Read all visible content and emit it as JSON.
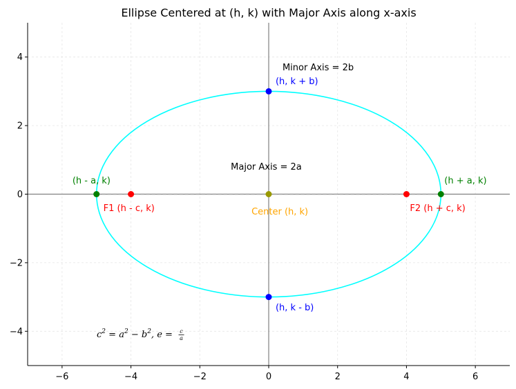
{
  "chart_data": {
    "type": "scatter",
    "title": "Ellipse Centered at (h, k) with Major Axis along x-axis",
    "xlabel": "",
    "ylabel": "",
    "xlim": [
      -7,
      7
    ],
    "ylim": [
      -5,
      5
    ],
    "x_ticks": [
      -6,
      -4,
      -2,
      0,
      2,
      4,
      6
    ],
    "y_ticks": [
      -4,
      -2,
      0,
      2,
      4
    ],
    "x_tick_labels": [
      "−6",
      "−4",
      "−2",
      "0",
      "2",
      "4",
      "6"
    ],
    "y_tick_labels": [
      "−4",
      "−2",
      "0",
      "2",
      "4"
    ],
    "grid": true,
    "ellipse": {
      "center": [
        0,
        0
      ],
      "a": 5,
      "b": 3,
      "color": "#00ffff"
    },
    "axis_lines": {
      "x": 0,
      "y": 0,
      "color": "#808080"
    },
    "dashed_axes": {
      "major": {
        "from": [
          -5,
          0
        ],
        "to": [
          5,
          0
        ]
      },
      "minor": {
        "from": [
          0,
          -3
        ],
        "to": [
          0,
          3
        ]
      },
      "color": "#a0a0a0"
    },
    "points": [
      {
        "name": "center",
        "x": 0,
        "y": 0,
        "color": "#999900",
        "label": "Center (h, k)",
        "label_color": "#ffa500",
        "label_at": [
          -0.5,
          -0.5
        ]
      },
      {
        "name": "focus-1",
        "x": -4,
        "y": 0,
        "color": "#ff0000",
        "label": "F1 (h - c, k)",
        "label_color": "#ff0000",
        "label_at": [
          -4.8,
          -0.4
        ]
      },
      {
        "name": "focus-2",
        "x": 4,
        "y": 0,
        "color": "#ff0000",
        "label": "F2 (h + c, k)",
        "label_color": "#ff0000",
        "label_at": [
          4.1,
          -0.4
        ]
      },
      {
        "name": "vertex-left",
        "x": -5,
        "y": 0,
        "color": "#008000",
        "label": "(h - a, k)",
        "label_color": "#008000",
        "label_at": [
          -5.7,
          0.4
        ]
      },
      {
        "name": "vertex-right",
        "x": 5,
        "y": 0,
        "color": "#008000",
        "label": "(h + a, k)",
        "label_color": "#008000",
        "label_at": [
          5.1,
          0.4
        ]
      },
      {
        "name": "co-vertex-top",
        "x": 0,
        "y": 3,
        "color": "#0000ff",
        "label": "(h, k + b)",
        "label_color": "#0000ff",
        "label_at": [
          0.2,
          3.3
        ]
      },
      {
        "name": "co-vertex-bottom",
        "x": 0,
        "y": -3,
        "color": "#0000ff",
        "label": "(h, k - b)",
        "label_color": "#0000ff",
        "label_at": [
          0.2,
          -3.3
        ]
      }
    ],
    "annotations": [
      {
        "name": "major-axis-label",
        "text": "Major Axis = 2a",
        "at": [
          -1.1,
          0.8
        ],
        "color": "#000000"
      },
      {
        "name": "minor-axis-label",
        "text": "Minor Axis = 2b",
        "at": [
          0.4,
          3.7
        ],
        "color": "#000000"
      }
    ],
    "formula": {
      "c": "c",
      "exp": "2",
      "eq": " = ",
      "a": "a",
      "minus": " − ",
      "b": "b",
      "sep": ",  ",
      "e": "e",
      "frac_num": "c",
      "frac_den": "a"
    }
  }
}
